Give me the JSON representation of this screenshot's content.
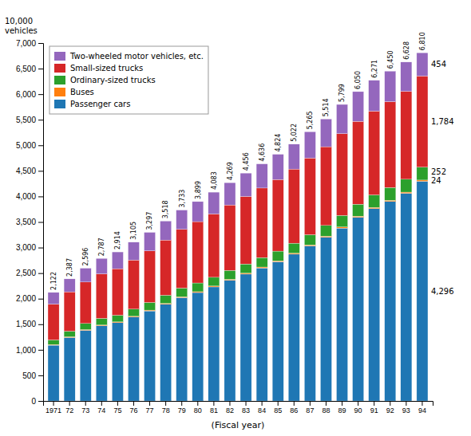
{
  "chart_data": {
    "type": "bar",
    "stacked": true,
    "legend": "upper left",
    "ylabel": "10,000\nvehicles",
    "xlabel": "(Fiscal year)",
    "categories": [
      "1971",
      "72",
      "73",
      "74",
      "75",
      "76",
      "77",
      "78",
      "79",
      "80",
      "81",
      "82",
      "83",
      "84",
      "85",
      "86",
      "87",
      "88",
      "89",
      "90",
      "91",
      "92",
      "93",
      "94"
    ],
    "series": [
      {
        "name": "Passenger cars",
        "annotation": "4,296",
        "values": [
          1090,
          1240,
          1380,
          1470,
          1530,
          1640,
          1760,
          1890,
          2020,
          2120,
          2230,
          2360,
          2480,
          2600,
          2720,
          2870,
          3030,
          3200,
          3380,
          3590,
          3760,
          3900,
          4060,
          4296
        ]
      },
      {
        "name": "Buses",
        "annotation": "24",
        "values": [
          13,
          14,
          15,
          15,
          16,
          16,
          16,
          17,
          17,
          17,
          18,
          18,
          19,
          19,
          20,
          20,
          21,
          22,
          23,
          23,
          24,
          24,
          24,
          24
        ]
      },
      {
        "name": "Ordinary-sized trucks",
        "annotation": "252",
        "values": [
          90,
          110,
          120,
          130,
          130,
          140,
          150,
          160,
          170,
          170,
          170,
          175,
          180,
          185,
          190,
          195,
          200,
          210,
          225,
          235,
          245,
          250,
          252,
          252
        ]
      },
      {
        "name": "Small-sized trucks",
        "annotation": "1,784",
        "values": [
          700,
          770,
          810,
          870,
          910,
          960,
          1010,
          1080,
          1150,
          1200,
          1240,
          1280,
          1320,
          1360,
          1400,
          1450,
          1500,
          1540,
          1600,
          1620,
          1640,
          1680,
          1720,
          1784
        ]
      },
      {
        "name": "Two-wheeled motor vehicles, etc.",
        "annotation": "454",
        "values": [
          229,
          253,
          271,
          302,
          328,
          349,
          361,
          371,
          376,
          392,
          425,
          436,
          457,
          472,
          494,
          487,
          514,
          542,
          571,
          582,
          602,
          596,
          572,
          454
        ]
      }
    ],
    "totals": [
      2122,
      2387,
      2596,
      2787,
      2914,
      3105,
      3297,
      3518,
      3733,
      3899,
      4083,
      4269,
      4456,
      4636,
      4824,
      5022,
      5265,
      5514,
      5799,
      6050,
      6271,
      6450,
      6628,
      6810
    ],
    "total_labels": [
      "2,122",
      "2,387",
      "2,596",
      "2,787",
      "2,914",
      "3,105",
      "3,297",
      "3,518",
      "3,733",
      "3,899",
      "4,083",
      "4,269",
      "4,456",
      "4,636",
      "4,824",
      "5,022",
      "5,265",
      "5,514",
      "5,799",
      "6,050",
      "6,271",
      "6,450",
      "6,628",
      "6,810"
    ],
    "ylim": [
      0,
      7000
    ],
    "yticks": [
      0,
      500,
      {
        "value": 1000,
        "label": "1,000"
      },
      {
        "value": 1500,
        "label": "1,500"
      },
      {
        "value": 2000,
        "label": "2,000"
      },
      {
        "value": 2500,
        "label": "2,500"
      },
      {
        "value": 3000,
        "label": "3,000"
      },
      {
        "value": 3500,
        "label": "3,500"
      },
      {
        "value": 4000,
        "label": "4,000"
      },
      {
        "value": 4500,
        "label": "4,500"
      },
      {
        "value": 5000,
        "label": "5,000"
      },
      {
        "value": 5500,
        "label": "5,500"
      },
      {
        "value": 6000,
        "label": "6,000"
      },
      {
        "value": 6500,
        "label": "6,500"
      },
      {
        "value": 7000,
        "label": "7,000"
      }
    ]
  }
}
